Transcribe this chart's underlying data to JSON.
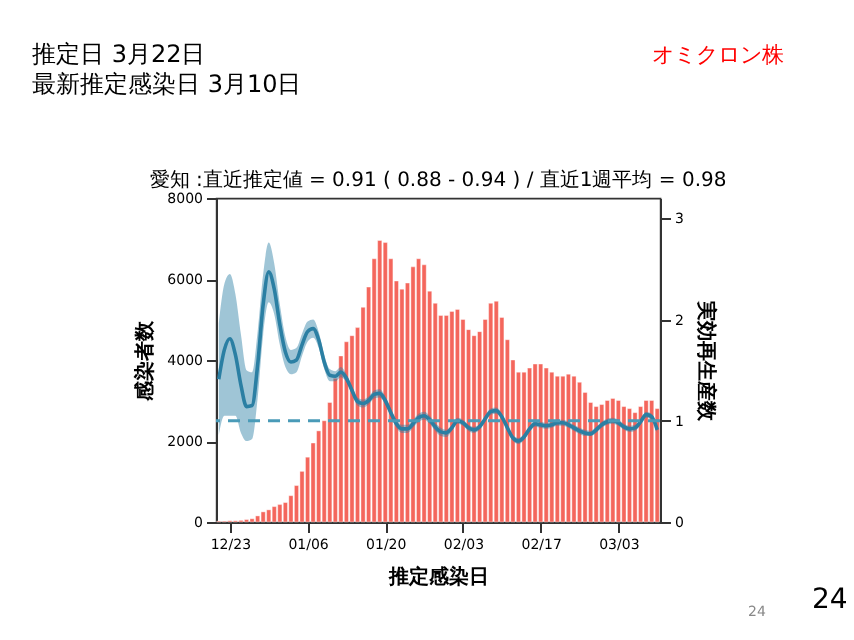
{
  "chart_data": {
    "type": "bar",
    "title": "愛知 :直近推定値 = 0.91 ( 0.88 - 0.94 ) / 直近1週平均 = 0.98",
    "xlabel": "推定感染日",
    "ylabel": "感染者数",
    "y2label": "実効再生産数",
    "annotations": [
      "推定日  3月22日",
      "最新推定感染日  3月10日",
      "オミクロン株",
      "24",
      "24"
    ],
    "categories": [
      null,
      null,
      "12/23",
      null,
      null,
      null,
      null,
      null,
      null,
      null,
      null,
      null,
      null,
      null,
      null,
      null,
      "01/06",
      null,
      null,
      null,
      null,
      null,
      null,
      null,
      null,
      null,
      null,
      null,
      null,
      null,
      "01/20",
      null,
      null,
      null,
      null,
      null,
      null,
      null,
      null,
      null,
      null,
      null,
      null,
      null,
      "02/03",
      null,
      null,
      null,
      null,
      null,
      null,
      null,
      null,
      null,
      null,
      null,
      null,
      null,
      "02/17",
      null,
      null,
      null,
      null,
      null,
      null,
      null,
      null,
      null,
      null,
      null,
      null,
      null,
      "03/03",
      null,
      null,
      null,
      null,
      null,
      null,
      null
    ],
    "ylim": [
      0,
      8000
    ],
    "yticks": [
      0,
      2000,
      4000,
      6000,
      8000
    ],
    "y2lim": [
      0,
      3.2
    ],
    "y2ticks": [
      0,
      1,
      2,
      3
    ],
    "series": [
      {
        "color": "#f4665c",
        "values": [
          20,
          20,
          30,
          30,
          40,
          60,
          80,
          150,
          250,
          300,
          380,
          430,
          480,
          650,
          900,
          1250,
          1600,
          1950,
          2250,
          2500,
          2950,
          3550,
          4100,
          4450,
          4600,
          4800,
          5300,
          5800,
          6500,
          6950,
          6900,
          6500,
          5950,
          5750,
          5900,
          6300,
          6500,
          6350,
          5700,
          5400,
          5100,
          5100,
          5200,
          5250,
          5000,
          4750,
          4600,
          4700,
          5000,
          5400,
          5450,
          5050,
          4500,
          4000,
          3700,
          3700,
          3800,
          3900,
          3900,
          3800,
          3700,
          3600,
          3600,
          3650,
          3600,
          3450,
          3200,
          2950,
          2850,
          2900,
          3000,
          3050,
          3000,
          2850,
          2800,
          2700,
          2850,
          3000,
          3000,
          2800
        ]
      },
      {
        "type": "line",
        "axis": "y2",
        "color": "#2b7fa3",
        "values": [
          1.41,
          1.7,
          1.81,
          1.65,
          1.35,
          1.14,
          1.15,
          1.55,
          2.15,
          2.47,
          2.3,
          1.95,
          1.68,
          1.58,
          1.6,
          1.75,
          1.88,
          1.91,
          1.8,
          1.58,
          1.45,
          1.44,
          1.48,
          1.42,
          1.3,
          1.19,
          1.17,
          1.2,
          1.26,
          1.27,
          1.2,
          1.08,
          0.97,
          0.92,
          0.92,
          0.97,
          1.03,
          1.05,
          1.01,
          0.94,
          0.89,
          0.88,
          0.93,
          1.0,
          0.98,
          0.93,
          0.91,
          0.94,
          1.02,
          1.09,
          1.1,
          1.04,
          0.93,
          0.83,
          0.8,
          0.84,
          0.92,
          0.97,
          0.96,
          0.95,
          0.96,
          0.98,
          0.98,
          0.96,
          0.93,
          0.9,
          0.88,
          0.87,
          0.91,
          0.96,
          0.99,
          1.0,
          0.98,
          0.94,
          0.92,
          0.93,
          0.99,
          1.06,
          1.04,
          0.91
        ],
        "lower": [
          0.86,
          1.05,
          1.05,
          1.05,
          0.88,
          0.8,
          0.82,
          1.22,
          1.85,
          2.17,
          2.05,
          1.75,
          1.53,
          1.46,
          1.48,
          1.64,
          1.78,
          1.82,
          1.72,
          1.51,
          1.39,
          1.39,
          1.43,
          1.38,
          1.26,
          1.15,
          1.13,
          1.16,
          1.22,
          1.23,
          1.16,
          1.04,
          0.93,
          0.88,
          0.88,
          0.93,
          0.99,
          1.01,
          0.97,
          0.9,
          0.85,
          0.84,
          0.9,
          0.97,
          0.95,
          0.9,
          0.88,
          0.91,
          0.99,
          1.06,
          1.07,
          1.01,
          0.9,
          0.8,
          0.77,
          0.81,
          0.89,
          0.94,
          0.93,
          0.92,
          0.93,
          0.95,
          0.95,
          0.93,
          0.9,
          0.87,
          0.85,
          0.85,
          0.88,
          0.93,
          0.96,
          0.97,
          0.95,
          0.91,
          0.89,
          0.9,
          0.96,
          1.03,
          1.01,
          0.88
        ],
        "upper": [
          1.96,
          2.35,
          2.45,
          2.25,
          1.85,
          1.5,
          1.48,
          1.88,
          2.45,
          2.76,
          2.55,
          2.15,
          1.83,
          1.7,
          1.72,
          1.86,
          1.98,
          2.0,
          1.88,
          1.65,
          1.51,
          1.49,
          1.53,
          1.46,
          1.34,
          1.23,
          1.21,
          1.24,
          1.3,
          1.31,
          1.24,
          1.12,
          1.01,
          0.96,
          0.96,
          1.01,
          1.07,
          1.09,
          1.05,
          0.98,
          0.93,
          0.91,
          0.96,
          1.03,
          1.01,
          0.96,
          0.94,
          0.97,
          1.05,
          1.12,
          1.13,
          1.07,
          0.96,
          0.86,
          0.83,
          0.87,
          0.95,
          1.0,
          0.99,
          0.98,
          0.99,
          1.01,
          1.01,
          0.99,
          0.96,
          0.93,
          0.91,
          0.9,
          0.94,
          0.99,
          1.02,
          1.03,
          1.01,
          0.97,
          0.95,
          0.96,
          1.02,
          1.09,
          1.07,
          0.94
        ]
      }
    ],
    "ref_lines": [
      {
        "axis": "y2",
        "value": 1,
        "line_style": "dashed",
        "color": "#4a9bb8"
      }
    ],
    "marker": "none"
  }
}
